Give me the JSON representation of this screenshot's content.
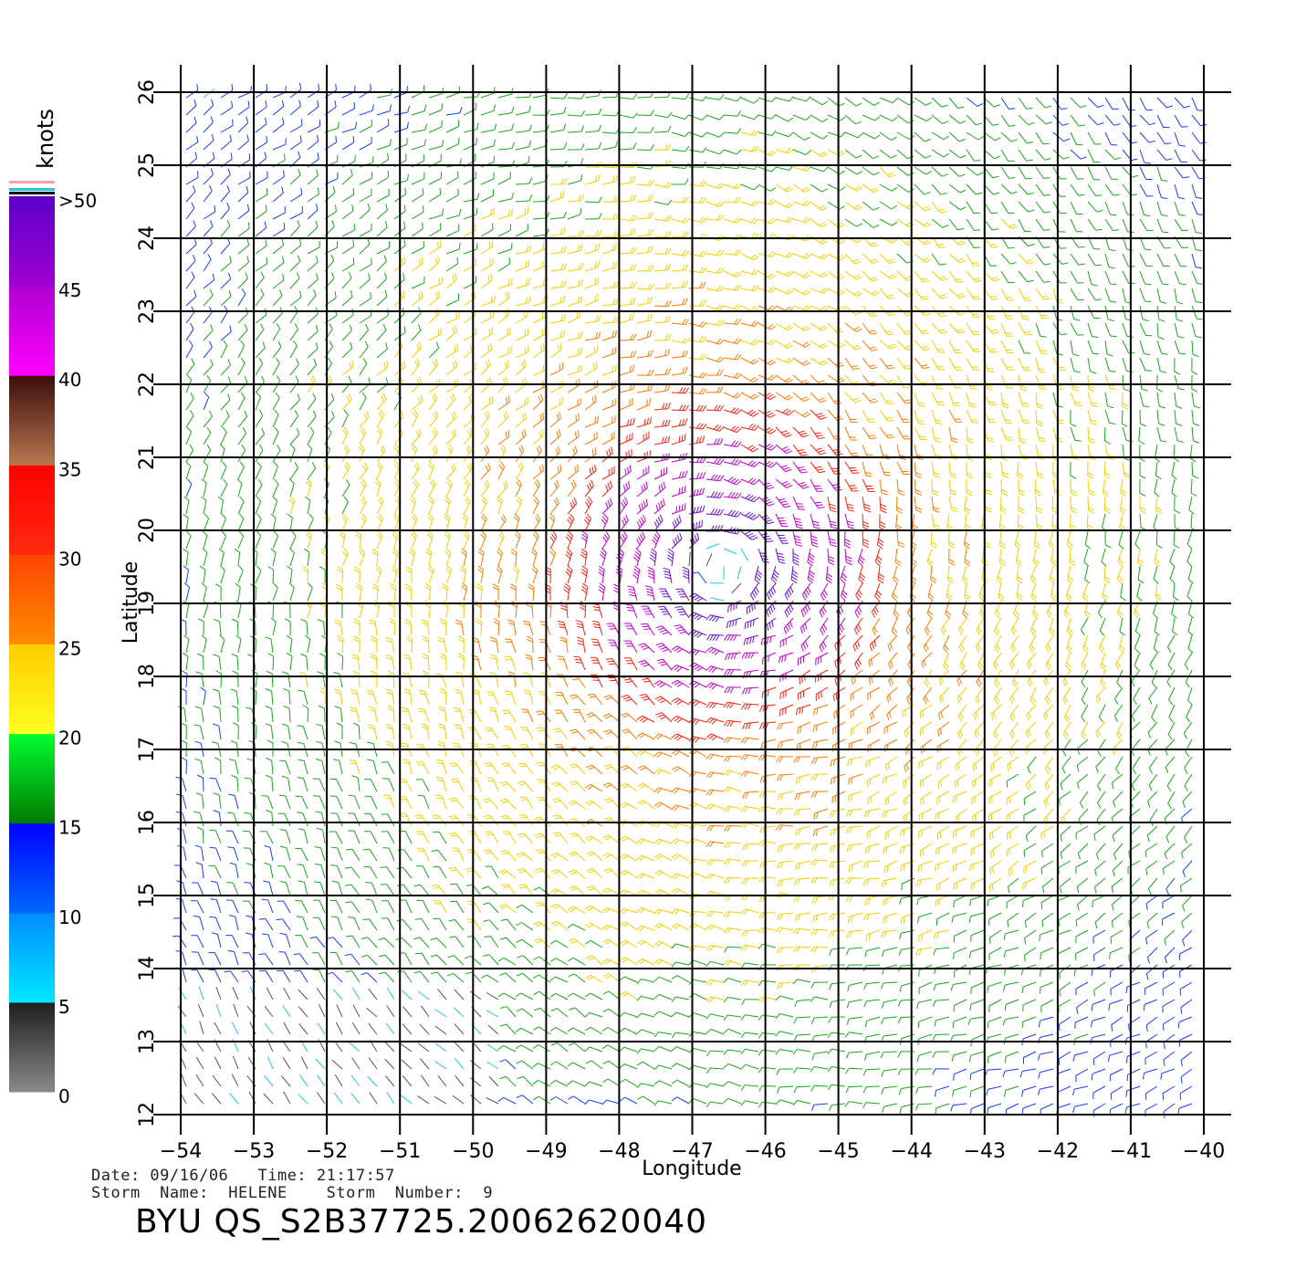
{
  "map": {
    "x_axis_label": "Longitude",
    "y_axis_label": "Latitude",
    "lon_ticks": [
      "−54",
      "−53",
      "−52",
      "−51",
      "−50",
      "−49",
      "−48",
      "−47",
      "−46",
      "−45",
      "−44",
      "−43",
      "−42",
      "−41",
      "−40"
    ],
    "lat_ticks": [
      "12",
      "13",
      "14",
      "15",
      "16",
      "17",
      "18",
      "19",
      "20",
      "21",
      "22",
      "23",
      "24",
      "25",
      "26"
    ],
    "lon_range": [
      -54,
      -40
    ],
    "lat_range": [
      12,
      26
    ],
    "storm_center": {
      "lon": -46.6,
      "lat": 19.5
    },
    "grid": true
  },
  "colorbar": {
    "units_label": "knots",
    "tick_labels": [
      ">50",
      "45",
      "40",
      "35",
      "30",
      "25",
      "20",
      "15",
      "10",
      "5",
      "0"
    ],
    "segments": [
      {
        "from": 0,
        "to": 5,
        "colors": [
          "#8a8a8a",
          "#1e1e1e"
        ]
      },
      {
        "from": 5,
        "to": 10,
        "colors": [
          "#00e8ff",
          "#008cff"
        ]
      },
      {
        "from": 10,
        "to": 15,
        "colors": [
          "#0068ff",
          "#0000ff"
        ]
      },
      {
        "from": 15,
        "to": 20,
        "colors": [
          "#007a00",
          "#00ff30"
        ]
      },
      {
        "from": 20,
        "to": 25,
        "colors": [
          "#ffff20",
          "#ffcc00"
        ]
      },
      {
        "from": 25,
        "to": 30,
        "colors": [
          "#ff8c00",
          "#ff4400"
        ]
      },
      {
        "from": 30,
        "to": 35,
        "colors": [
          "#ff2a10",
          "#ff0000"
        ]
      },
      {
        "from": 35,
        "to": 40,
        "colors": [
          "#b87850",
          "#3c0c0c"
        ]
      },
      {
        "from": 40,
        "to": 45,
        "colors": [
          "#ff00ff",
          "#b000d0"
        ]
      },
      {
        "from": 45,
        "to": 50,
        "colors": [
          "#a000d0",
          "#5a00c8"
        ]
      }
    ]
  },
  "speed_colors": {
    "calm": "#555555",
    "light": "#20c8e8",
    "moderate": "#1a3cff",
    "fresh": "#1aa81a",
    "strong": "#f0d000",
    "gale": "#ff7a00",
    "storm": "#ff2010",
    "severe": "#c000d0",
    "extreme": "#6a10d0"
  },
  "info": {
    "date_line": "Date: 09/16/06   Time: 21:17:57",
    "storm_line": "Storm  Name:  HELENE    Storm  Number:  9"
  },
  "footer": {
    "title": "BYU  QS_S2B37725.20062620040"
  }
}
